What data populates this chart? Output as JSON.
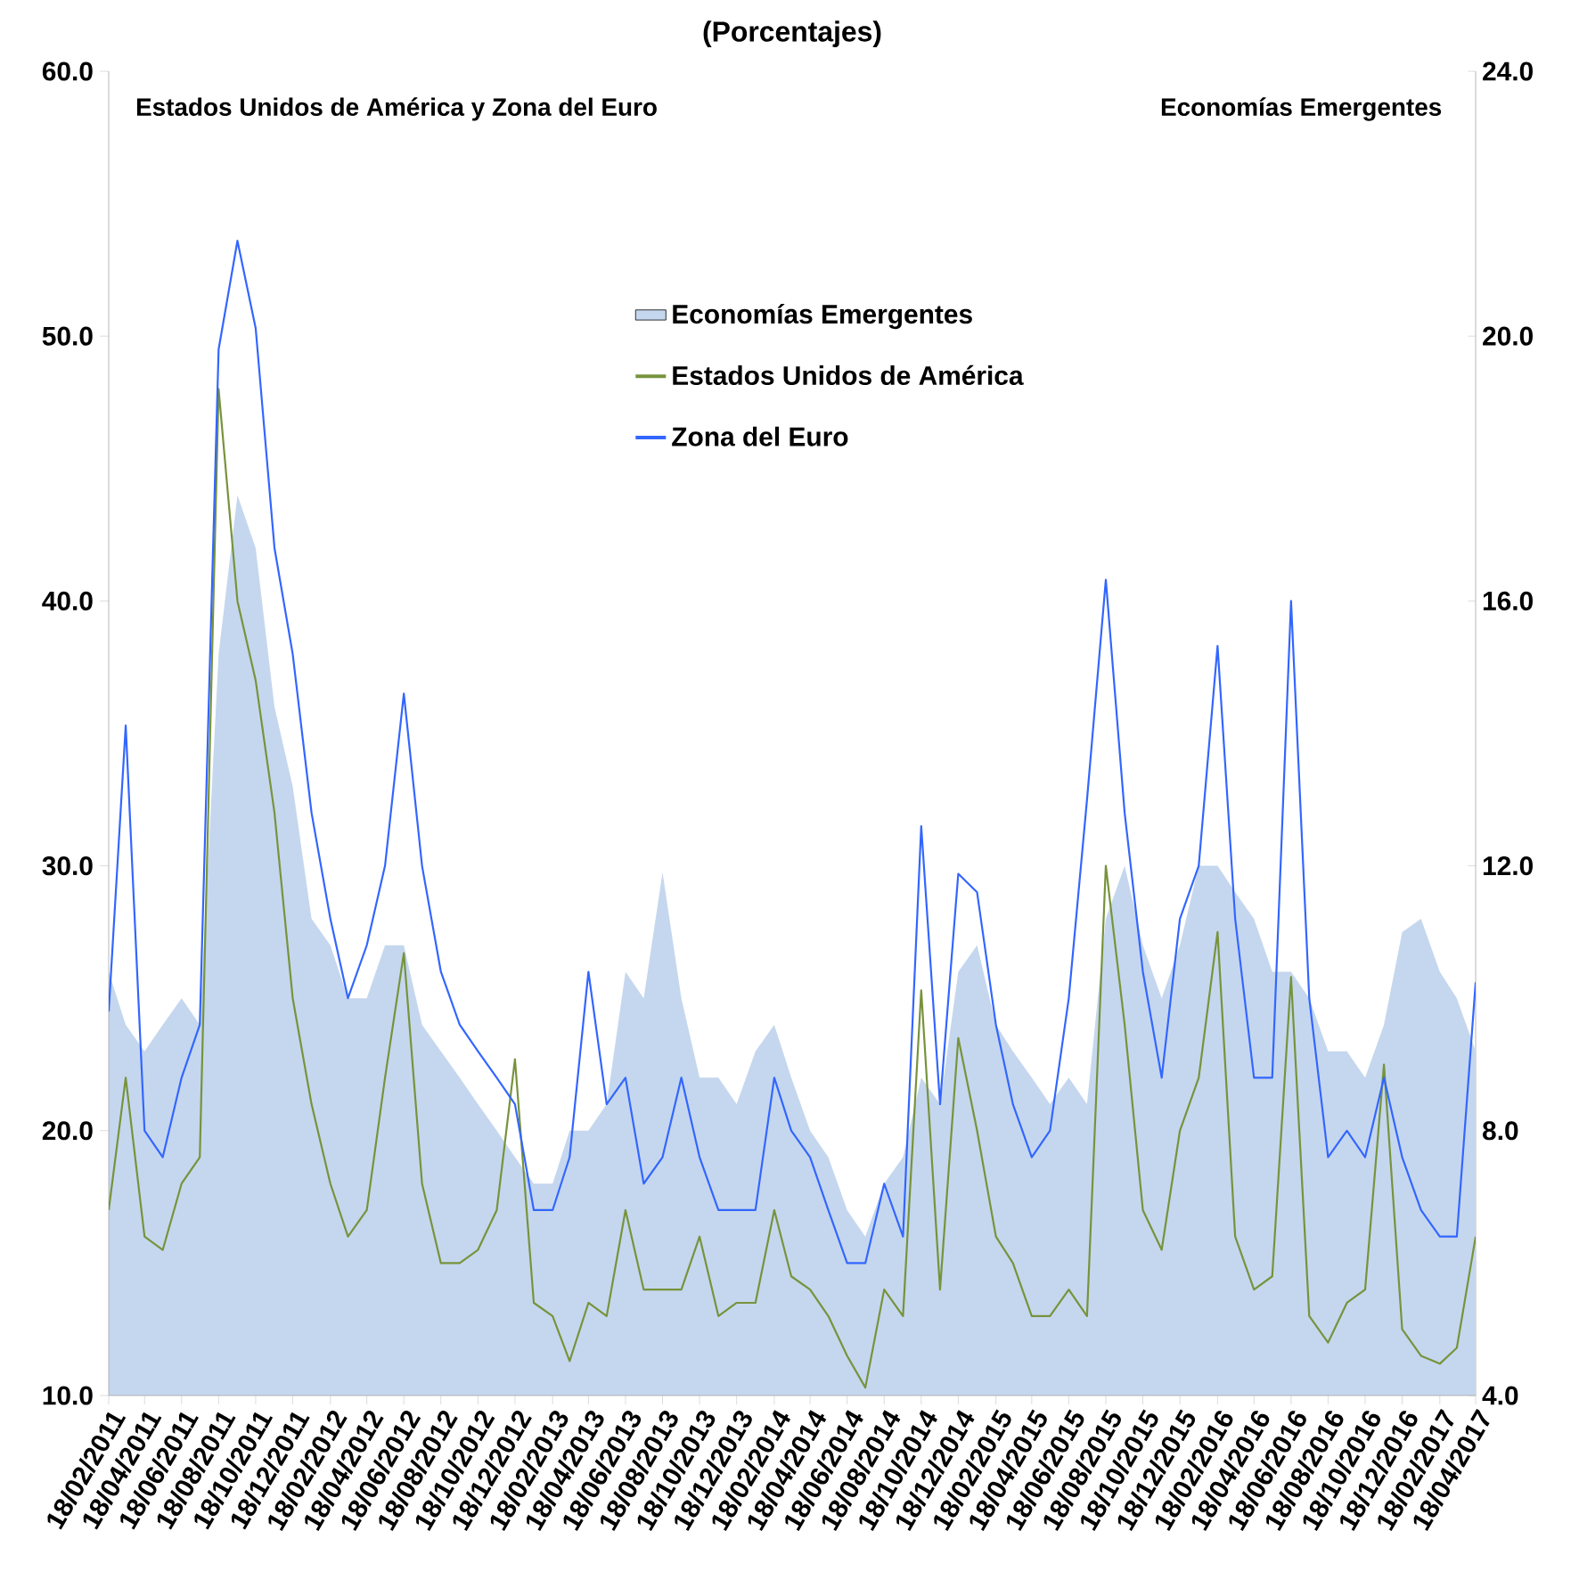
{
  "chart_data": {
    "type": "line",
    "title": "(Porcentajes)",
    "ylabel": "Estados Unidos de América y Zona del Euro",
    "y2label": "Economías Emergentes",
    "x": [
      "2011-02-18",
      "2011-03-18",
      "2011-04-18",
      "2011-05-18",
      "2011-06-18",
      "2011-07-18",
      "2011-08-18",
      "2011-09-18",
      "2011-10-18",
      "2011-11-18",
      "2011-12-18",
      "2012-01-18",
      "2012-02-18",
      "2012-03-18",
      "2012-04-18",
      "2012-05-18",
      "2012-06-18",
      "2012-07-18",
      "2012-08-18",
      "2012-09-18",
      "2012-10-18",
      "2012-11-18",
      "2012-12-18",
      "2013-01-18",
      "2013-02-18",
      "2013-03-18",
      "2013-04-18",
      "2013-05-18",
      "2013-06-18",
      "2013-07-18",
      "2013-08-18",
      "2013-09-18",
      "2013-10-18",
      "2013-11-18",
      "2013-12-18",
      "2014-01-18",
      "2014-02-18",
      "2014-03-18",
      "2014-04-18",
      "2014-05-18",
      "2014-06-18",
      "2014-07-18",
      "2014-08-18",
      "2014-09-18",
      "2014-10-18",
      "2014-11-18",
      "2014-12-18",
      "2015-01-18",
      "2015-02-18",
      "2015-03-18",
      "2015-04-18",
      "2015-05-18",
      "2015-06-18",
      "2015-07-18",
      "2015-08-18",
      "2015-09-18",
      "2015-10-18",
      "2015-11-18",
      "2015-12-18",
      "2016-01-18",
      "2016-02-18",
      "2016-03-18",
      "2016-04-18",
      "2016-05-18",
      "2016-06-18",
      "2016-07-18",
      "2016-08-18",
      "2016-09-18",
      "2016-10-18",
      "2016-11-18",
      "2016-12-18",
      "2017-01-18",
      "2017-02-18",
      "2017-03-18",
      "2017-04-18"
    ],
    "series": [
      {
        "name": "Economías Emergentes",
        "type": "area",
        "axis": "y2",
        "color": "#c5d7ee",
        "values": [
          10.4,
          9.6,
          9.2,
          9.6,
          10.0,
          9.6,
          15.2,
          17.6,
          16.8,
          14.4,
          13.2,
          11.2,
          10.8,
          10.0,
          10.0,
          10.8,
          10.8,
          9.6,
          9.2,
          8.8,
          8.4,
          8.0,
          7.6,
          7.2,
          7.2,
          8.0,
          8.0,
          8.4,
          10.4,
          10.0,
          11.9,
          10.0,
          8.8,
          8.8,
          8.4,
          9.2,
          9.6,
          8.8,
          8.0,
          7.6,
          6.8,
          6.4,
          7.2,
          7.6,
          8.8,
          8.4,
          10.4,
          10.8,
          9.6,
          9.2,
          8.8,
          8.4,
          8.8,
          8.4,
          11.2,
          12.0,
          10.8,
          10.0,
          10.8,
          12.0,
          12.0,
          11.6,
          11.2,
          10.4,
          10.4,
          10.0,
          9.2,
          9.2,
          8.8,
          9.6,
          11.0,
          11.2,
          10.4,
          10.0,
          9.2
        ]
      },
      {
        "name": "Estados Unidos de América",
        "color": "#77933c",
        "values": [
          17,
          22,
          16,
          15.5,
          18,
          19,
          48,
          40,
          37,
          32,
          25,
          21,
          18,
          16,
          17,
          22,
          26.7,
          18,
          15,
          15,
          15.5,
          17,
          22.7,
          13.5,
          13,
          11.3,
          13.5,
          13,
          17,
          14,
          14,
          14,
          16,
          13,
          13.5,
          13.5,
          17,
          14.5,
          14,
          13,
          11.5,
          10.3,
          14,
          13,
          25.3,
          14,
          23.5,
          20,
          16,
          15,
          13,
          13,
          14,
          13,
          30,
          24,
          17,
          15.5,
          20,
          22,
          27.5,
          16,
          14,
          14.5,
          25.8,
          13,
          12,
          13.5,
          14,
          22.5,
          12.5,
          11.5,
          11.2,
          11.8,
          16
        ]
      },
      {
        "name": "Zona del Euro",
        "color": "#3366ff",
        "values": [
          24.5,
          35.3,
          20,
          19,
          22,
          24,
          49.5,
          53.6,
          50.3,
          42,
          38,
          32,
          28,
          25,
          27,
          30,
          36.5,
          30,
          26,
          24,
          23,
          22,
          21,
          17,
          17,
          19,
          26,
          21,
          22,
          18,
          19,
          22,
          19,
          17,
          17,
          17,
          22,
          20,
          19,
          17,
          15,
          15,
          18,
          16,
          31.5,
          21,
          29.7,
          29,
          24,
          21,
          19,
          20,
          25,
          32.5,
          40.8,
          32,
          26,
          22,
          28,
          30,
          38.3,
          28,
          22,
          22,
          40,
          25,
          19,
          20,
          19,
          22,
          19,
          17,
          16,
          16,
          25.6
        ]
      }
    ],
    "xlim": [
      "2011-02-18",
      "2017-04-18"
    ],
    "xticks": [
      {
        "value": "2011-02-18",
        "label": "18/02/2011"
      },
      {
        "value": "2011-04-18",
        "label": "18/04/2011"
      },
      {
        "value": "2011-06-18",
        "label": "18/06/2011"
      },
      {
        "value": "2011-08-18",
        "label": "18/08/2011"
      },
      {
        "value": "2011-10-18",
        "label": "18/10/2011"
      },
      {
        "value": "2011-12-18",
        "label": "18/12/2011"
      },
      {
        "value": "2012-02-18",
        "label": "18/02/2012"
      },
      {
        "value": "2012-04-18",
        "label": "18/04/2012"
      },
      {
        "value": "2012-06-18",
        "label": "18/06/2012"
      },
      {
        "value": "2012-08-18",
        "label": "18/08/2012"
      },
      {
        "value": "2012-10-18",
        "label": "18/10/2012"
      },
      {
        "value": "2012-12-18",
        "label": "18/12/2012"
      },
      {
        "value": "2013-02-18",
        "label": "18/02/2013"
      },
      {
        "value": "2013-04-18",
        "label": "18/04/2013"
      },
      {
        "value": "2013-06-18",
        "label": "18/06/2013"
      },
      {
        "value": "2013-08-18",
        "label": "18/08/2013"
      },
      {
        "value": "2013-10-18",
        "label": "18/10/2013"
      },
      {
        "value": "2013-12-18",
        "label": "18/12/2013"
      },
      {
        "value": "2014-02-18",
        "label": "18/02/2014"
      },
      {
        "value": "2014-04-18",
        "label": "18/04/2014"
      },
      {
        "value": "2014-06-18",
        "label": "18/06/2014"
      },
      {
        "value": "2014-08-18",
        "label": "18/08/2014"
      },
      {
        "value": "2014-10-18",
        "label": "18/10/2014"
      },
      {
        "value": "2014-12-18",
        "label": "18/12/2014"
      },
      {
        "value": "2015-02-18",
        "label": "18/02/2015"
      },
      {
        "value": "2015-04-18",
        "label": "18/04/2015"
      },
      {
        "value": "2015-06-18",
        "label": "18/06/2015"
      },
      {
        "value": "2015-08-18",
        "label": "18/08/2015"
      },
      {
        "value": "2015-10-18",
        "label": "18/10/2015"
      },
      {
        "value": "2015-12-18",
        "label": "18/12/2015"
      },
      {
        "value": "2016-02-18",
        "label": "18/02/2016"
      },
      {
        "value": "2016-04-18",
        "label": "18/04/2016"
      },
      {
        "value": "2016-06-18",
        "label": "18/06/2016"
      },
      {
        "value": "2016-08-18",
        "label": "18/08/2016"
      },
      {
        "value": "2016-10-18",
        "label": "18/10/2016"
      },
      {
        "value": "2016-12-18",
        "label": "18/12/2016"
      },
      {
        "value": "2017-02-18",
        "label": "18/02/2017"
      },
      {
        "value": "2017-04-18",
        "label": "18/04/2017"
      }
    ],
    "ylim": [
      10,
      60
    ],
    "yticks": [
      {
        "value": 10,
        "label": "10.0"
      },
      {
        "value": 20,
        "label": "20.0"
      },
      {
        "value": 30,
        "label": "30.0"
      },
      {
        "value": 40,
        "label": "40.0"
      },
      {
        "value": 50,
        "label": "50.0"
      },
      {
        "value": 60,
        "label": "60.0"
      }
    ],
    "y2lim": [
      4,
      24
    ],
    "y2ticks": [
      {
        "value": 4,
        "label": "4.0"
      },
      {
        "value": 8,
        "label": "8.0"
      },
      {
        "value": 12,
        "label": "12.0"
      },
      {
        "value": 16,
        "label": "16.0"
      },
      {
        "value": 20,
        "label": "20.0"
      },
      {
        "value": 24,
        "label": "24.0"
      }
    ],
    "legend": "top"
  }
}
